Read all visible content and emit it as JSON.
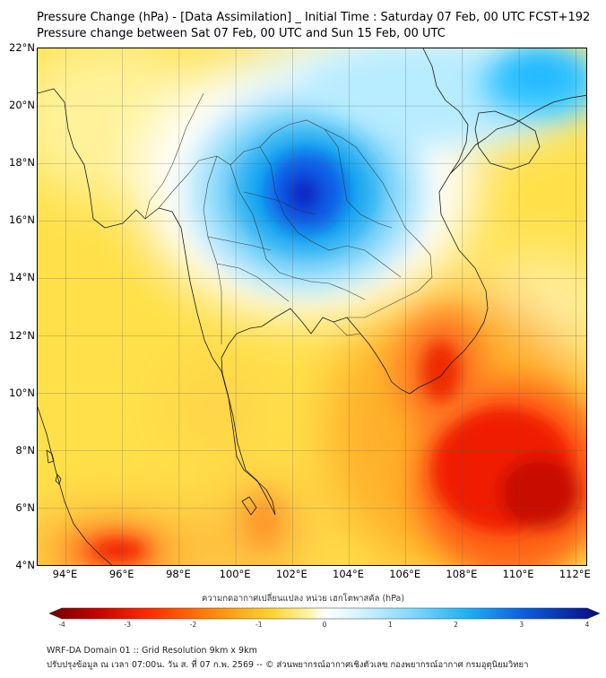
{
  "title_line1": "Pressure Change (hPa) - [Data Assimilation] _ Initial Time : Saturday 07 Feb, 00 UTC FCST+192",
  "title_line2": "Pressure change between Sat 07 Feb, 00 UTC and Sun 15 Feb, 00 UTC",
  "lat_labels": [
    "22°N",
    "20°N",
    "18°N",
    "16°N",
    "14°N",
    "12°N",
    "10°N",
    "8°N",
    "6°N",
    "4°N"
  ],
  "lon_labels": [
    "94°E",
    "96°E",
    "98°E",
    "100°E",
    "102°E",
    "104°E",
    "106°E",
    "108°E",
    "110°E",
    "112°E"
  ],
  "colorbar": {
    "title": "ความกดอากาศเปลี่ยนแปลง หน่วย เฮกโตพาสคัล (hPa)",
    "ticks": [
      "-4",
      "-3",
      "-2",
      "-1",
      "0",
      "1",
      "2",
      "3",
      "4"
    ],
    "min": -4,
    "max": 4
  },
  "footer_line1": "WRF-DA Domain 01 :: Grid Resolution 9km x 9km",
  "footer_line2": "ปรับปรุงข้อมูล ณ เวลา 07:00น. วัน ส. ที่ 07 ก.พ. 2569 -- © ส่วนพยากรณ์อากาศเชิงตัวเลข กองพยากรณ์อากาศ กรมอุตุนิยมวิทยา",
  "colors": {
    "low": "#7a0000",
    "mid": "#ffffff",
    "high": "#0a0a8a"
  }
}
